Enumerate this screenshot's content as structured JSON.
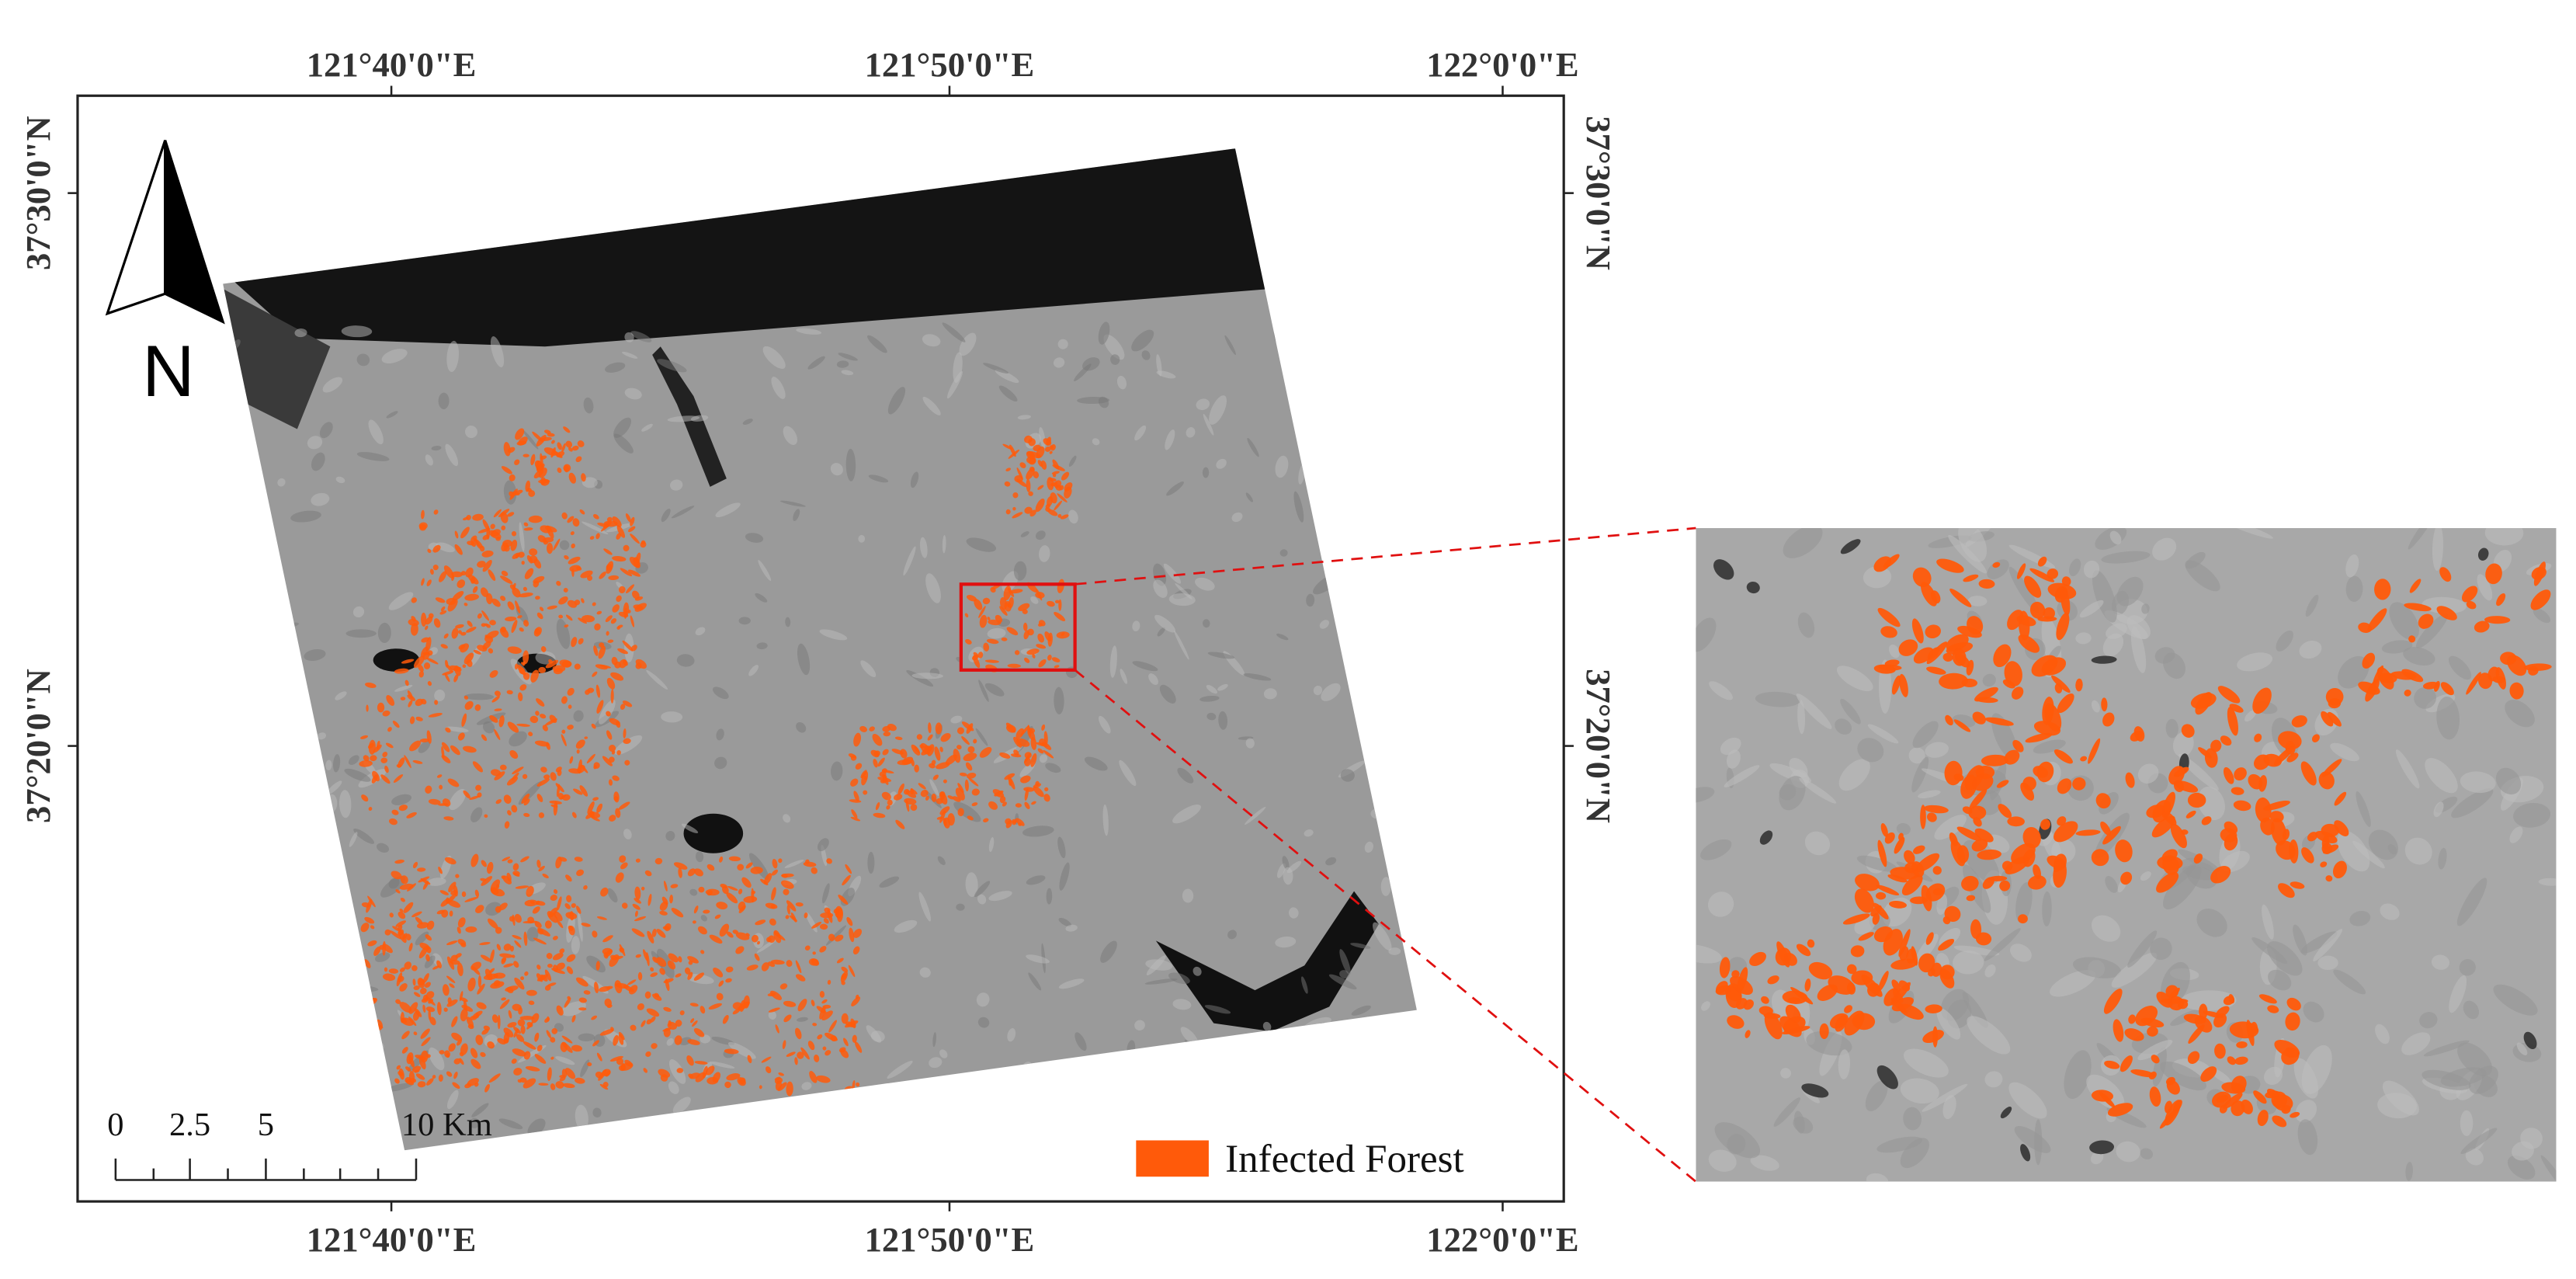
{
  "map": {
    "longitude_labels": [
      "121°40'0\"E",
      "121°50'0\"E",
      "122°0'0\"E"
    ],
    "latitude_labels": [
      "37°30'0\"N",
      "37°20'0\"N"
    ],
    "north_arrow": {
      "label": "N"
    },
    "scale_bar": {
      "labels": [
        "0",
        "2.5",
        "5",
        "10 Km"
      ]
    },
    "legend": {
      "label": "Infected Forest"
    }
  }
}
